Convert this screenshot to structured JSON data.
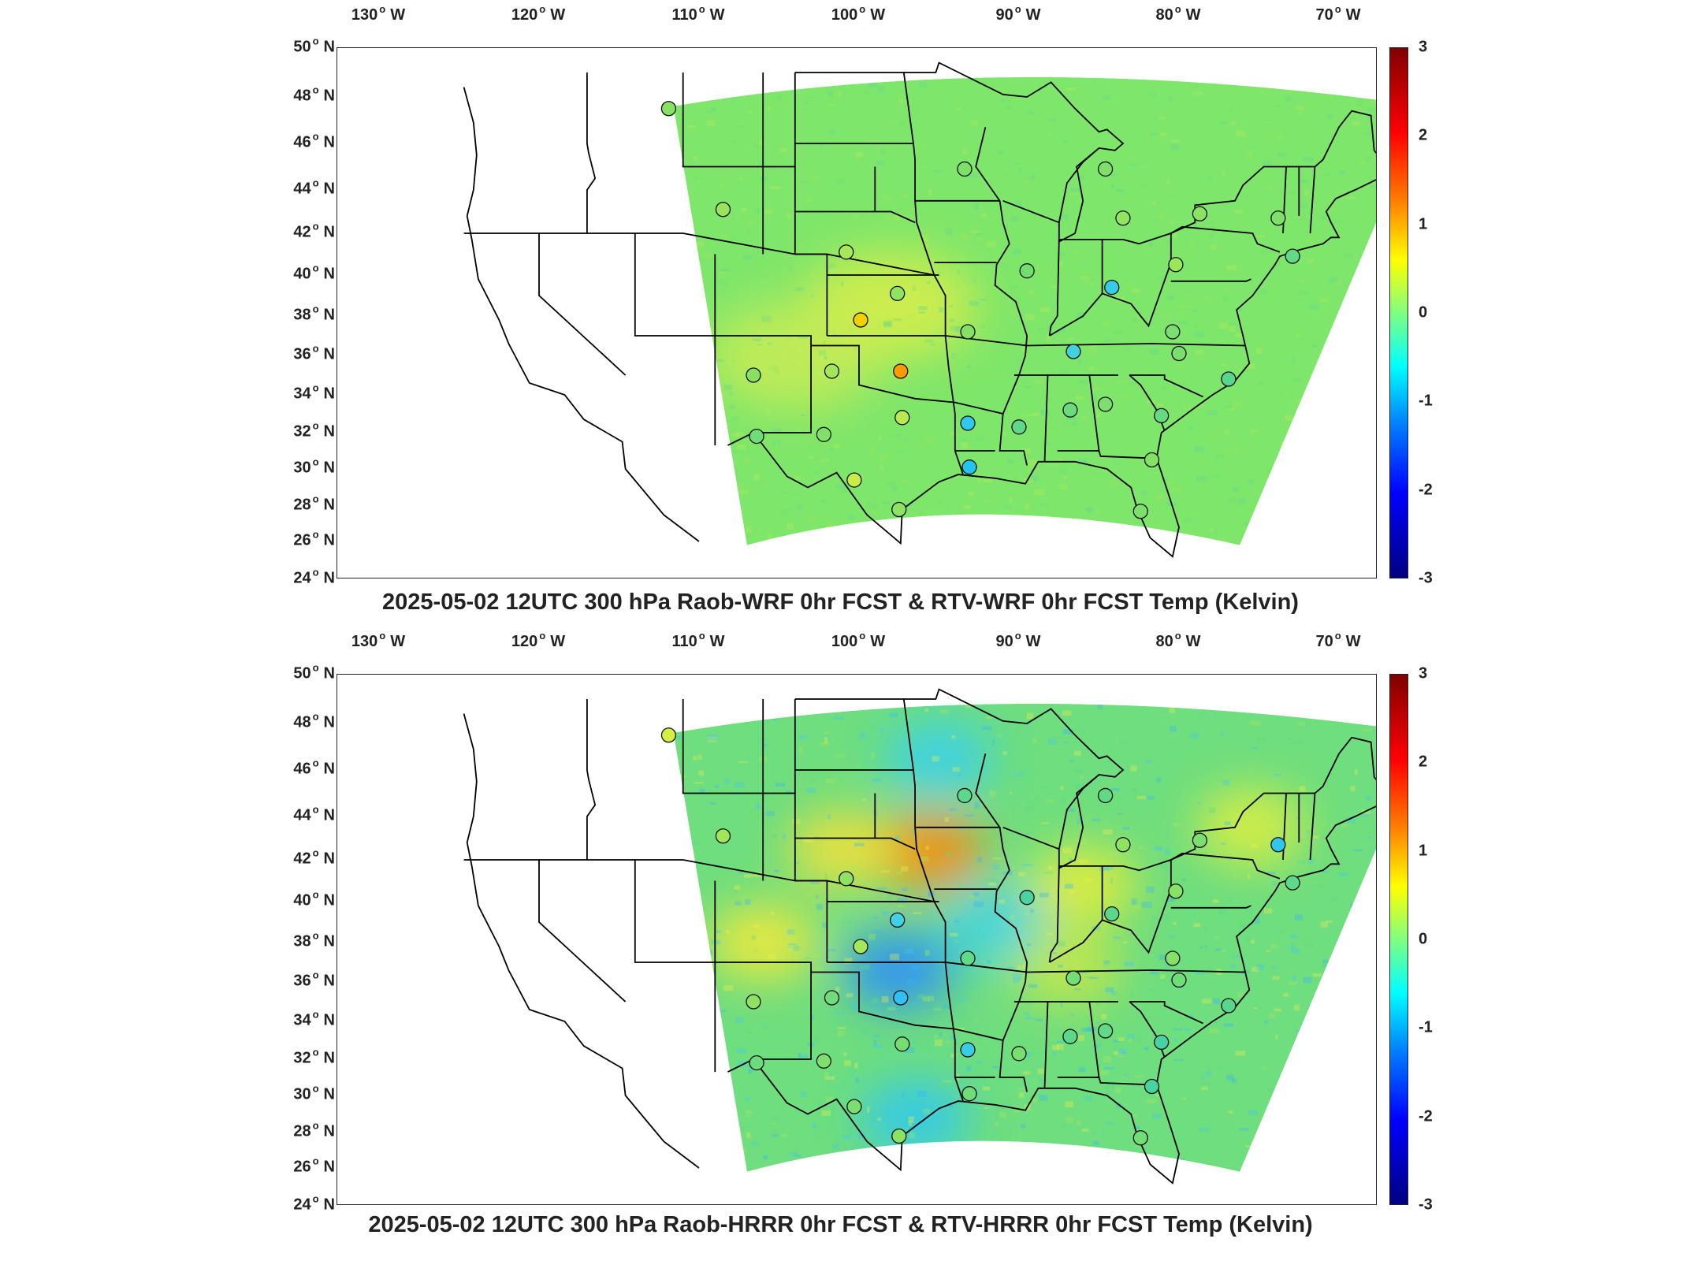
{
  "panels": [
    {
      "title": "2025-05-02 12UTC 300 hPa Raob-WRF 0hr FCST & RTV-WRF 0hr FCST Temp (Kelvin)",
      "field_tint": "#7ee66a",
      "hotspots": [
        {
          "lon": -98.0,
          "lat": 38.5,
          "color": "#d8ef4a"
        },
        {
          "lon": -104.0,
          "lat": 36.0,
          "color": "#c8ec55"
        }
      ],
      "stations": [
        {
          "lon": -111.9,
          "lat": 47.5,
          "color": "#86e265"
        },
        {
          "lon": -108.5,
          "lat": 43.1,
          "color": "#9be35a"
        },
        {
          "lon": -100.8,
          "lat": 41.1,
          "color": "#a6e85a"
        },
        {
          "lon": -97.6,
          "lat": 39.1,
          "color": "#90e35f"
        },
        {
          "lon": -99.9,
          "lat": 37.8,
          "color": "#f0d000"
        },
        {
          "lon": -97.4,
          "lat": 35.2,
          "color": "#ff9a00"
        },
        {
          "lon": -106.6,
          "lat": 35.0,
          "color": "#88e060"
        },
        {
          "lon": -101.7,
          "lat": 35.2,
          "color": "#a3e65a"
        },
        {
          "lon": -106.4,
          "lat": 31.8,
          "color": "#70dd78"
        },
        {
          "lon": -102.2,
          "lat": 31.9,
          "color": "#80e06a"
        },
        {
          "lon": -97.3,
          "lat": 32.8,
          "color": "#b8e950"
        },
        {
          "lon": -100.3,
          "lat": 29.4,
          "color": "#c9ec48"
        },
        {
          "lon": -97.5,
          "lat": 27.8,
          "color": "#8de362"
        },
        {
          "lon": -93.2,
          "lat": 32.5,
          "color": "#2fc8f0"
        },
        {
          "lon": -93.1,
          "lat": 30.1,
          "color": "#22c4f0"
        },
        {
          "lon": -93.2,
          "lat": 37.2,
          "color": "#86e063"
        },
        {
          "lon": -93.4,
          "lat": 44.9,
          "color": "#7ae06a"
        },
        {
          "lon": -89.5,
          "lat": 40.2,
          "color": "#72de70"
        },
        {
          "lon": -84.6,
          "lat": 44.9,
          "color": "#7ee06b"
        },
        {
          "lon": -83.5,
          "lat": 42.7,
          "color": "#92e461"
        },
        {
          "lon": -84.2,
          "lat": 39.4,
          "color": "#36cce8"
        },
        {
          "lon": -86.6,
          "lat": 36.2,
          "color": "#40d2e0"
        },
        {
          "lon": -90.0,
          "lat": 32.3,
          "color": "#5fd889"
        },
        {
          "lon": -86.8,
          "lat": 33.2,
          "color": "#6adb7d"
        },
        {
          "lon": -84.6,
          "lat": 33.5,
          "color": "#7cdf6f"
        },
        {
          "lon": -80.4,
          "lat": 37.2,
          "color": "#7ade70"
        },
        {
          "lon": -80.2,
          "lat": 40.5,
          "color": "#9ae75b"
        },
        {
          "lon": -78.7,
          "lat": 42.9,
          "color": "#8ce363"
        },
        {
          "lon": -73.8,
          "lat": 42.7,
          "color": "#7edf6c"
        },
        {
          "lon": -72.9,
          "lat": 40.9,
          "color": "#62d987"
        },
        {
          "lon": -81.7,
          "lat": 30.5,
          "color": "#85e163"
        },
        {
          "lon": -81.1,
          "lat": 32.9,
          "color": "#66d983"
        },
        {
          "lon": -80.0,
          "lat": 36.1,
          "color": "#7cde70"
        },
        {
          "lon": -76.9,
          "lat": 34.8,
          "color": "#58d690"
        },
        {
          "lon": -82.4,
          "lat": 27.7,
          "color": "#7ee06c"
        }
      ]
    },
    {
      "title": "2025-05-02 12UTC 300 hPa Raob-HRRR 0hr FCST & RTV-HRRR 0hr FCST Temp (Kelvin)",
      "field_tint": "#6fde7e",
      "hotspots": [
        {
          "lon": -95.6,
          "lat": 42.4,
          "color": "#ff8a00"
        },
        {
          "lon": -101.0,
          "lat": 42.5,
          "color": "#f6e23a"
        },
        {
          "lon": -106.0,
          "lat": 38.0,
          "color": "#f6ea3a"
        },
        {
          "lon": -97.5,
          "lat": 36.6,
          "color": "#2a8cff"
        },
        {
          "lon": -96.5,
          "lat": 28.8,
          "color": "#2ec8f5"
        },
        {
          "lon": -95.0,
          "lat": 46.5,
          "color": "#3ad0ee"
        },
        {
          "lon": -91.5,
          "lat": 38.8,
          "color": "#40d3e8"
        },
        {
          "lon": -86.0,
          "lat": 40.8,
          "color": "#e8ed3a"
        },
        {
          "lon": -87.0,
          "lat": 36.7,
          "color": "#c8e848"
        },
        {
          "lon": -75.5,
          "lat": 43.5,
          "color": "#e0ee40"
        }
      ],
      "stations": [
        {
          "lon": -111.9,
          "lat": 47.5,
          "color": "#d4ee44"
        },
        {
          "lon": -108.5,
          "lat": 43.1,
          "color": "#a0e659"
        },
        {
          "lon": -100.8,
          "lat": 41.1,
          "color": "#8de262"
        },
        {
          "lon": -97.6,
          "lat": 39.1,
          "color": "#40d2e4"
        },
        {
          "lon": -99.9,
          "lat": 37.8,
          "color": "#a5e65b"
        },
        {
          "lon": -97.4,
          "lat": 35.2,
          "color": "#30c0f4"
        },
        {
          "lon": -106.6,
          "lat": 35.0,
          "color": "#8ee162"
        },
        {
          "lon": -101.7,
          "lat": 35.2,
          "color": "#70dc79"
        },
        {
          "lon": -106.4,
          "lat": 31.8,
          "color": "#6bdb7d"
        },
        {
          "lon": -102.2,
          "lat": 31.9,
          "color": "#7edf6c"
        },
        {
          "lon": -97.3,
          "lat": 32.8,
          "color": "#76dd73"
        },
        {
          "lon": -100.3,
          "lat": 29.4,
          "color": "#7bde70"
        },
        {
          "lon": -97.5,
          "lat": 27.8,
          "color": "#8ce263"
        },
        {
          "lon": -93.2,
          "lat": 32.5,
          "color": "#38cde6"
        },
        {
          "lon": -93.1,
          "lat": 30.1,
          "color": "#70dd78"
        },
        {
          "lon": -93.2,
          "lat": 37.2,
          "color": "#60d989"
        },
        {
          "lon": -93.4,
          "lat": 44.9,
          "color": "#5cd88c"
        },
        {
          "lon": -89.5,
          "lat": 40.2,
          "color": "#48d3a0"
        },
        {
          "lon": -84.6,
          "lat": 44.9,
          "color": "#62d986"
        },
        {
          "lon": -83.5,
          "lat": 42.7,
          "color": "#90e361"
        },
        {
          "lon": -84.2,
          "lat": 39.4,
          "color": "#5bd78d"
        },
        {
          "lon": -86.6,
          "lat": 36.2,
          "color": "#74dd74"
        },
        {
          "lon": -90.0,
          "lat": 32.3,
          "color": "#7ade70"
        },
        {
          "lon": -86.8,
          "lat": 33.2,
          "color": "#5cd88b"
        },
        {
          "lon": -84.6,
          "lat": 33.5,
          "color": "#60d988"
        },
        {
          "lon": -80.4,
          "lat": 37.2,
          "color": "#86e167"
        },
        {
          "lon": -80.2,
          "lat": 40.5,
          "color": "#88e266"
        },
        {
          "lon": -78.7,
          "lat": 42.9,
          "color": "#7bdf6f"
        },
        {
          "lon": -73.8,
          "lat": 42.7,
          "color": "#30c6f0"
        },
        {
          "lon": -72.9,
          "lat": 40.9,
          "color": "#5ed98a"
        },
        {
          "lon": -81.7,
          "lat": 30.5,
          "color": "#48d4a0"
        },
        {
          "lon": -81.1,
          "lat": 32.9,
          "color": "#46d3a3"
        },
        {
          "lon": -80.0,
          "lat": 36.1,
          "color": "#70dd78"
        },
        {
          "lon": -76.9,
          "lat": 34.8,
          "color": "#58d690"
        },
        {
          "lon": -82.4,
          "lat": 27.7,
          "color": "#72dd76"
        }
      ]
    }
  ],
  "lon_ticks": [
    {
      "lon": -130,
      "num": "130",
      "hemi": "W"
    },
    {
      "lon": -120,
      "num": "120",
      "hemi": "W"
    },
    {
      "lon": -110,
      "num": "110",
      "hemi": "W"
    },
    {
      "lon": -100,
      "num": "100",
      "hemi": "W"
    },
    {
      "lon": -90,
      "num": "90",
      "hemi": "W"
    },
    {
      "lon": -80,
      "num": "80",
      "hemi": "W"
    },
    {
      "lon": -70,
      "num": "70",
      "hemi": "W"
    }
  ],
  "lat_ticks": [
    {
      "lat": 50,
      "num": "50",
      "hemi": "N"
    },
    {
      "lat": 48,
      "num": "48",
      "hemi": "N"
    },
    {
      "lat": 46,
      "num": "46",
      "hemi": "N"
    },
    {
      "lat": 44,
      "num": "44",
      "hemi": "N"
    },
    {
      "lat": 42,
      "num": "42",
      "hemi": "N"
    },
    {
      "lat": 40,
      "num": "40",
      "hemi": "N"
    },
    {
      "lat": 38,
      "num": "38",
      "hemi": "N"
    },
    {
      "lat": 36,
      "num": "36",
      "hemi": "N"
    },
    {
      "lat": 34,
      "num": "34",
      "hemi": "N"
    },
    {
      "lat": 32,
      "num": "32",
      "hemi": "N"
    },
    {
      "lat": 30,
      "num": "30",
      "hemi": "N"
    },
    {
      "lat": 28,
      "num": "28",
      "hemi": "N"
    },
    {
      "lat": 26,
      "num": "26",
      "hemi": "N"
    },
    {
      "lat": 24,
      "num": "24",
      "hemi": "N"
    }
  ],
  "colorbar": {
    "ticks": [
      "3",
      "2",
      "1",
      "0",
      "-1",
      "-2",
      "-3"
    ],
    "range": [
      -3,
      3
    ],
    "colormap": "jet"
  }
}
